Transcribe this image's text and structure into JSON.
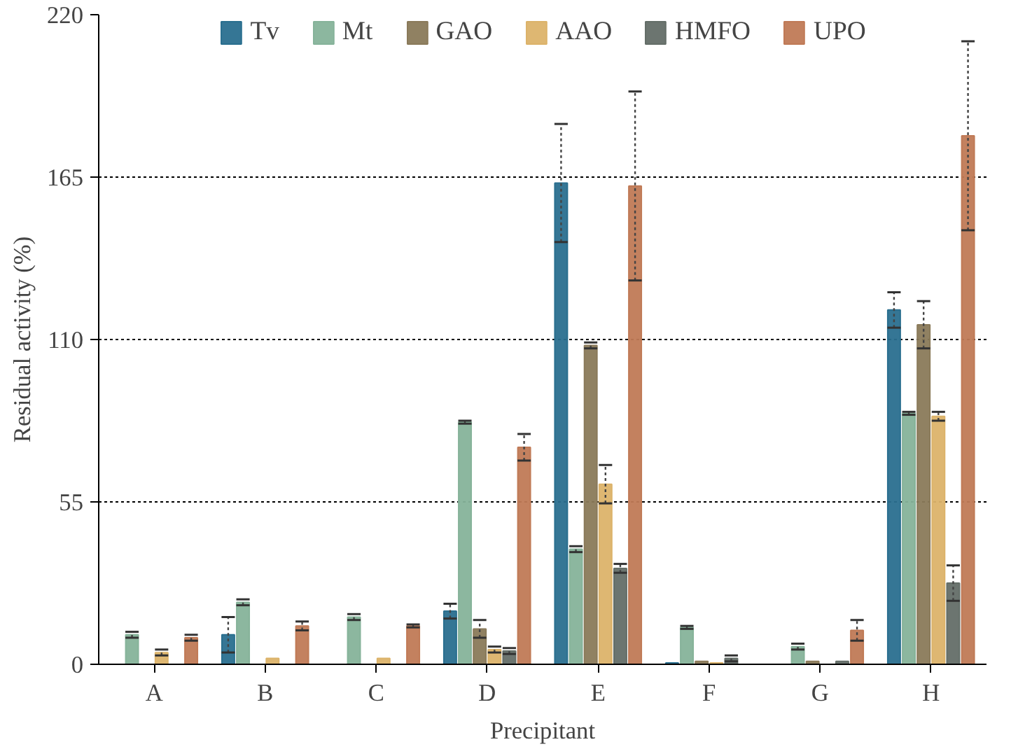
{
  "chart_data": {
    "type": "bar",
    "xlabel": "Precipitant",
    "ylabel": "Residual activity (%)",
    "categories": [
      "A",
      "B",
      "C",
      "D",
      "E",
      "F",
      "G",
      "H"
    ],
    "ylim": [
      0,
      220
    ],
    "yticks": [
      0,
      55,
      110,
      165,
      220
    ],
    "grid": "y",
    "legend": "top",
    "series": [
      {
        "name": "Tv",
        "color": "#2a6f8f",
        "values": [
          null,
          10,
          null,
          18,
          163,
          0.5,
          null,
          120
        ],
        "errors": [
          null,
          6,
          null,
          2.5,
          20,
          null,
          null,
          6
        ]
      },
      {
        "name": "Mt",
        "color": "#86b39a",
        "values": [
          10,
          21,
          16,
          82,
          39,
          12.5,
          6,
          85
        ],
        "errors": [
          1,
          1,
          1,
          0.5,
          1,
          0.5,
          1,
          0.5
        ]
      },
      {
        "name": "GAO",
        "color": "#8a7a5a",
        "values": [
          null,
          null,
          null,
          12,
          108,
          1,
          1,
          115
        ],
        "errors": [
          null,
          null,
          null,
          3,
          1,
          null,
          null,
          8
        ]
      },
      {
        "name": "AAO",
        "color": "#dcb36a",
        "values": [
          4,
          2,
          2,
          5,
          61,
          0.5,
          null,
          84
        ],
        "errors": [
          1,
          null,
          null,
          1,
          6.5,
          null,
          null,
          1.5
        ]
      },
      {
        "name": "HMFO",
        "color": "#646e68",
        "values": [
          null,
          null,
          null,
          4.5,
          32.5,
          2,
          1,
          27.5
        ],
        "errors": [
          null,
          null,
          null,
          1,
          1.5,
          1,
          null,
          6
        ]
      },
      {
        "name": "UPO",
        "color": "#c07a56",
        "values": [
          9,
          13,
          13,
          73.5,
          162,
          null,
          11.5,
          179
        ],
        "errors": [
          1,
          1.5,
          0.5,
          4.5,
          32,
          null,
          3.5,
          32
        ]
      }
    ]
  }
}
